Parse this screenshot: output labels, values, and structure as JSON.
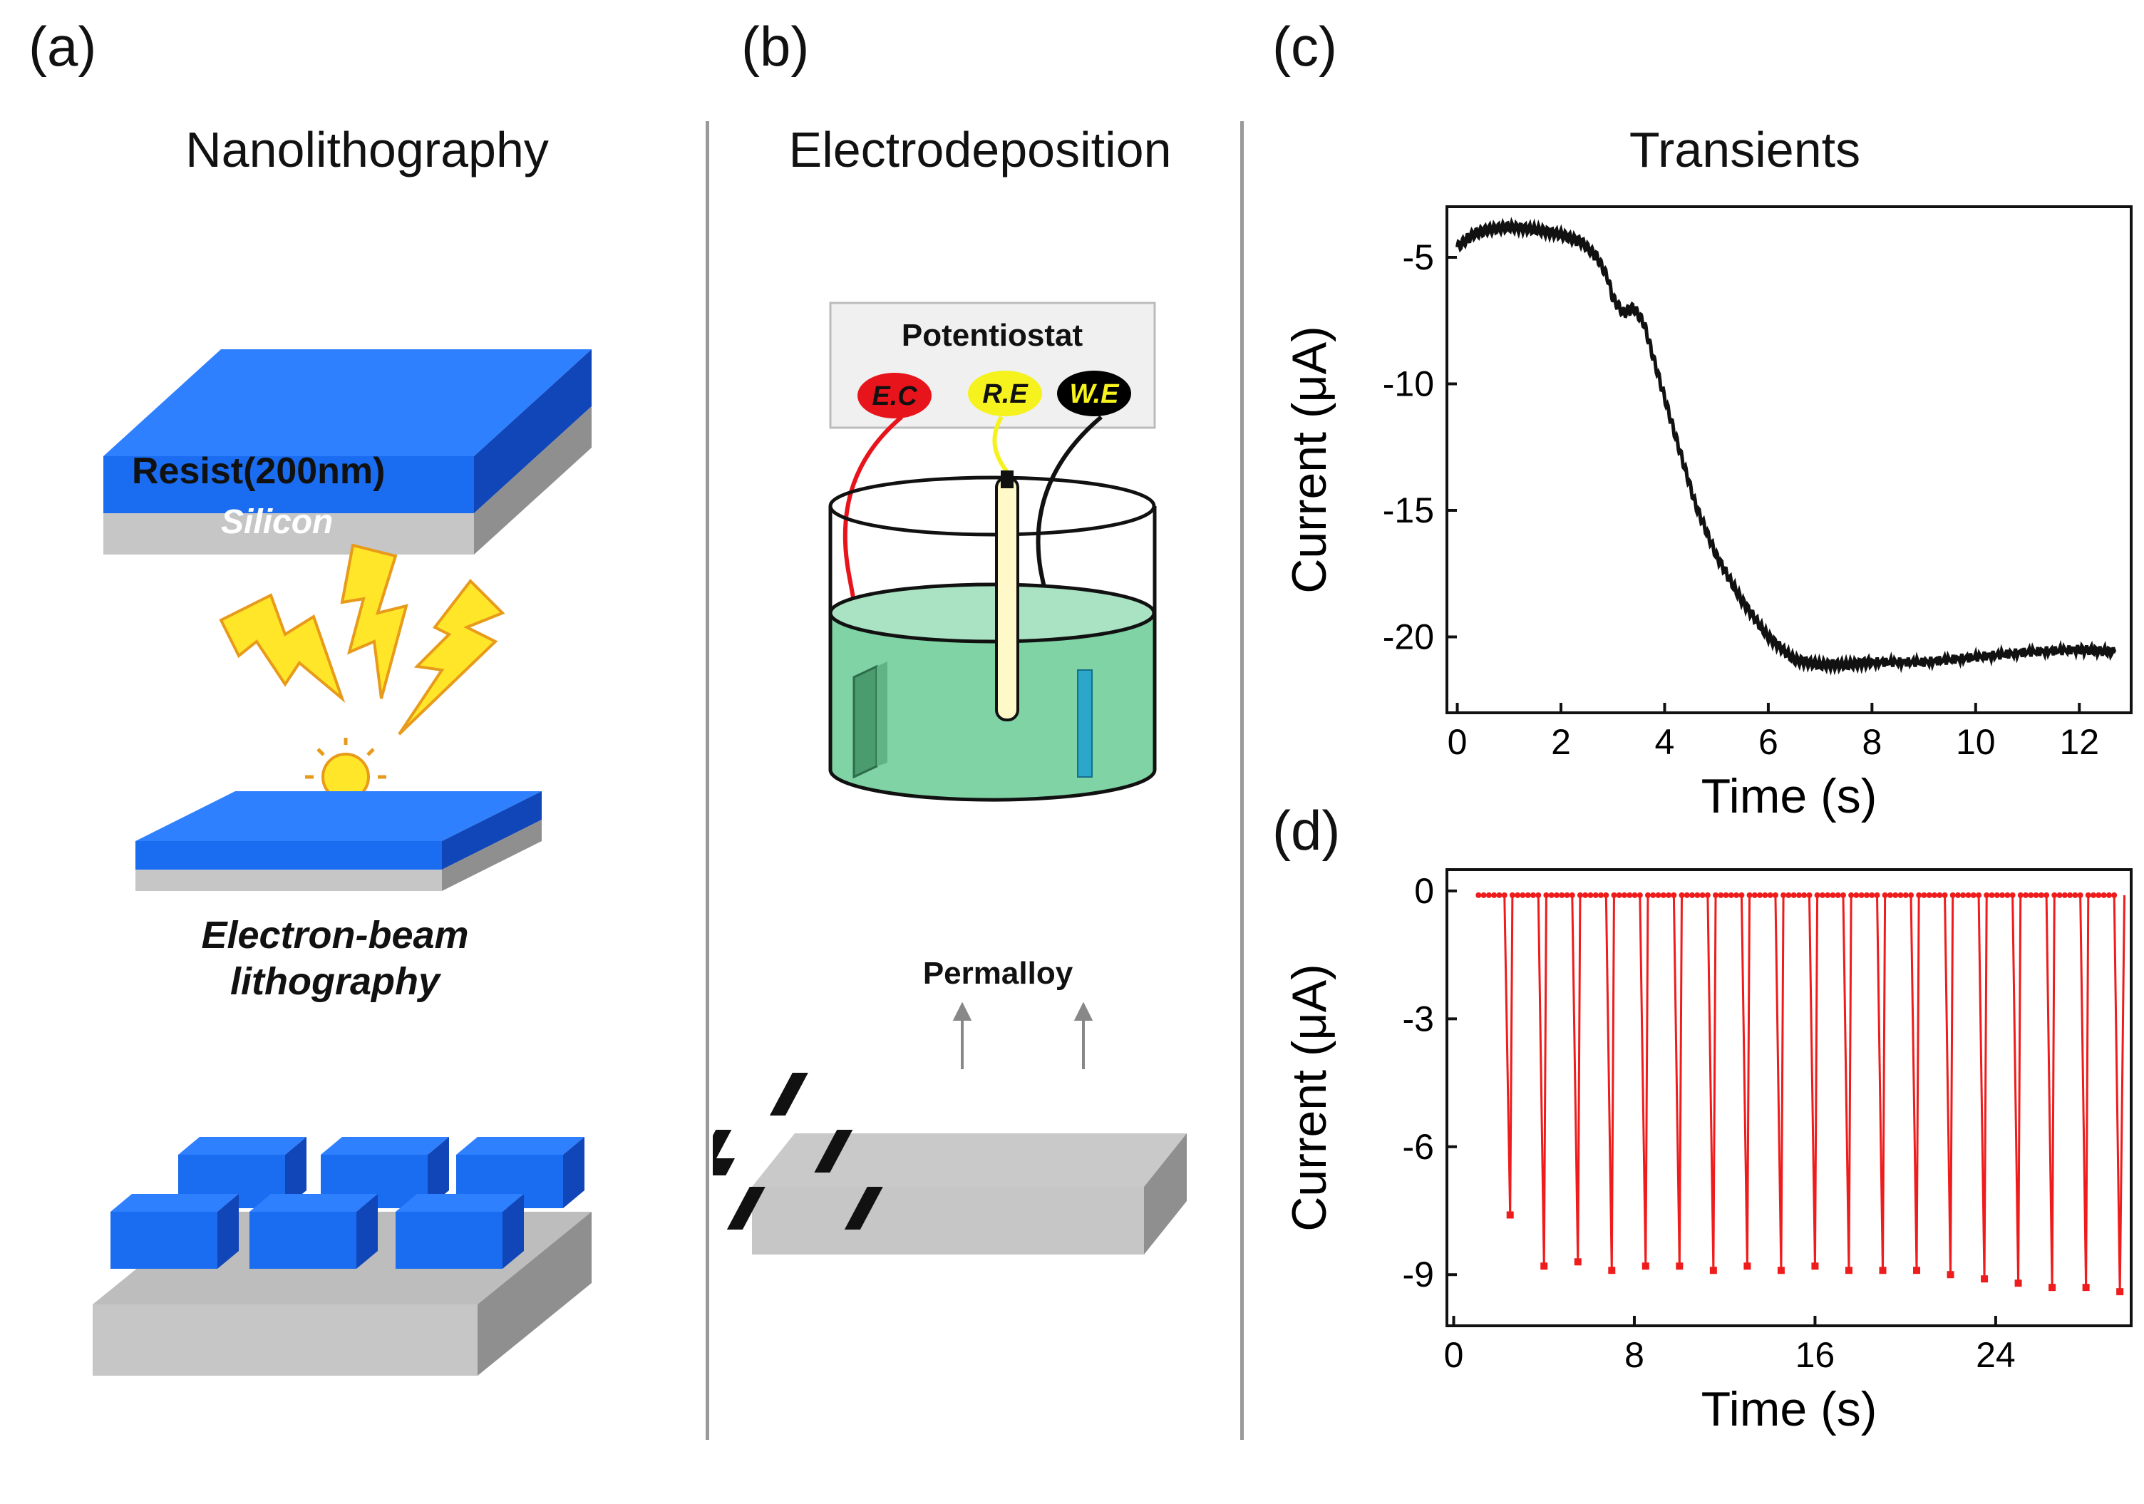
{
  "panels": {
    "a": {
      "label": "(a)",
      "title": "Nanolithography",
      "resist_label": "Resist(200nm)",
      "silicon_label": "Silicon",
      "ebeam_line1": "Electron-beam",
      "ebeam_line2": "lithography"
    },
    "b": {
      "label": "(b)",
      "title": "Electrodeposition",
      "potentiostat_label": "Potentiostat",
      "electrodes": [
        "E.C",
        "R.E",
        "W.E"
      ],
      "material_label": "Permalloy"
    },
    "c": {
      "label": "(c)",
      "title": "Transients"
    },
    "d": {
      "label": "(d)"
    }
  },
  "colors": {
    "resist_blue": "#1a6cf0",
    "silicon_gray": "#c4c4c4",
    "electrolyte_green": "#7fd3a4",
    "ec_red": "#e8141c",
    "re_yellow": "#f5f21e",
    "we_black": "#000000",
    "transient_line": "#111111",
    "pulse_red": "#ee1c1c"
  },
  "chart_data": [
    {
      "id": "c",
      "type": "line",
      "title": "Transients",
      "xlabel": "Time (s)",
      "ylabel": "Current (μA)",
      "xlim": [
        -0.2,
        13
      ],
      "ylim": [
        -23,
        -3
      ],
      "xticks": [
        0,
        2,
        4,
        6,
        8,
        10,
        12
      ],
      "yticks": [
        -5,
        -10,
        -15,
        -20
      ],
      "series": [
        {
          "name": "transient",
          "x": [
            0,
            0.3,
            0.6,
            1.0,
            1.5,
            2.0,
            2.4,
            2.7,
            2.9,
            3.0,
            3.2,
            3.4,
            3.6,
            3.8,
            4.2,
            4.6,
            5.0,
            5.5,
            6.0,
            6.5,
            7.0,
            7.5,
            8.0,
            9.0,
            10.0,
            11.0,
            12.0,
            12.7
          ],
          "y": [
            -4.6,
            -4.1,
            -3.9,
            -3.8,
            -3.9,
            -4.1,
            -4.4,
            -5.0,
            -5.8,
            -6.6,
            -7.2,
            -7.0,
            -7.6,
            -9.1,
            -12.0,
            -14.8,
            -16.8,
            -18.6,
            -20.0,
            -20.9,
            -21.1,
            -21.1,
            -21.0,
            -21.0,
            -20.8,
            -20.6,
            -20.5,
            -20.6
          ]
        }
      ]
    },
    {
      "id": "d",
      "type": "line",
      "xlabel": "Time (s)",
      "ylabel": "Current (μA)",
      "xlim": [
        -0.3,
        30
      ],
      "ylim": [
        -10.2,
        0.5
      ],
      "xticks": [
        0,
        8,
        16,
        24
      ],
      "yticks": [
        0,
        -3,
        -6,
        -9
      ],
      "pulses": {
        "start_times": [
          1.1,
          2.6,
          4.1,
          5.6,
          7.1,
          8.6,
          10.1,
          11.6,
          13.1,
          14.6,
          16.1,
          17.6,
          19.1,
          20.6,
          22.1,
          23.6,
          25.1,
          26.6,
          28.1
        ],
        "width": 1.4,
        "baseline": -0.1,
        "minima": [
          -7.6,
          -8.8,
          -8.7,
          -8.9,
          -8.8,
          -8.8,
          -8.9,
          -8.8,
          -8.9,
          -8.8,
          -8.9,
          -8.9,
          -8.9,
          -9.0,
          -9.1,
          -9.2,
          -9.3,
          -9.3,
          -9.4
        ]
      }
    }
  ]
}
